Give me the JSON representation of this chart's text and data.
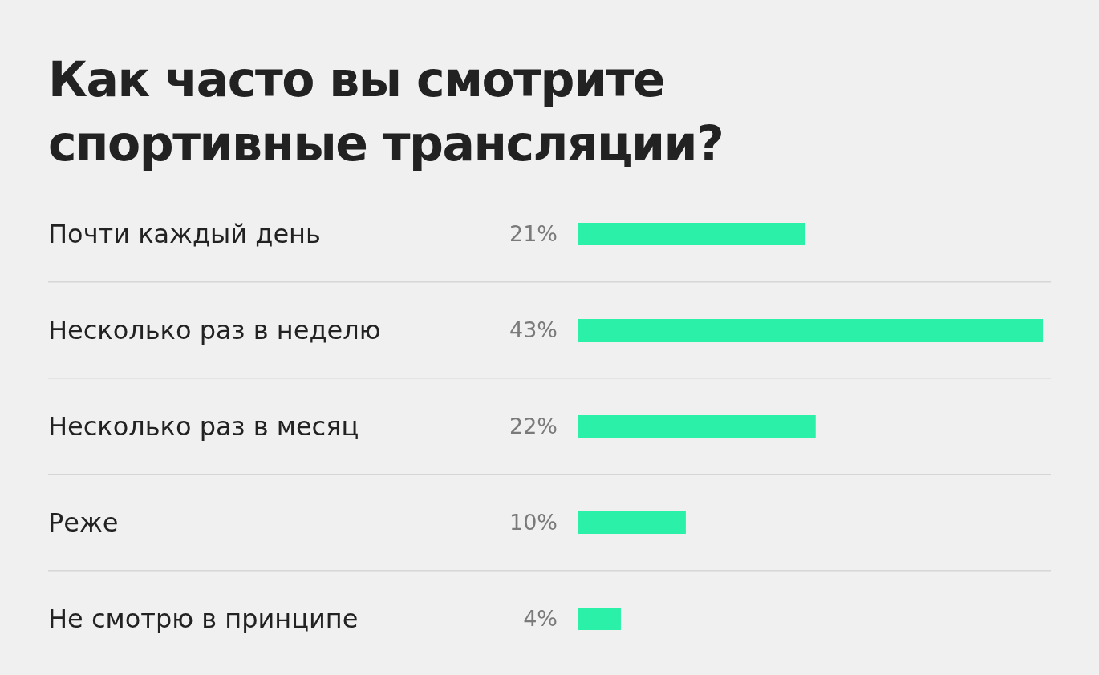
{
  "chart_data": {
    "type": "bar",
    "orientation": "horizontal",
    "title": "Как часто вы смотрите спортивные трансляции?",
    "categories": [
      "Почти каждый день",
      "Несколько раз в неделю",
      "Несколько раз в месяц",
      "Реже",
      "Не смотрю в принципе"
    ],
    "values": [
      21,
      43,
      22,
      10,
      4
    ],
    "value_labels": [
      "21%",
      "43%",
      "22%",
      "10%",
      "4%"
    ],
    "color": "#2af0a8"
  }
}
